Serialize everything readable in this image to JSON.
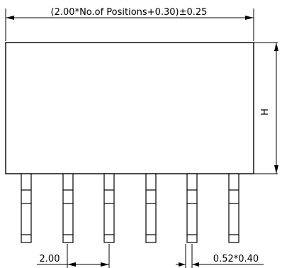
{
  "dimensions": {
    "overall_width": "(2.00*No.of Positions+0.30)±0.25",
    "height": "H",
    "pitch": "2.00",
    "pin_size": "0.52*0.40"
  },
  "pins": {
    "count": 6
  }
}
